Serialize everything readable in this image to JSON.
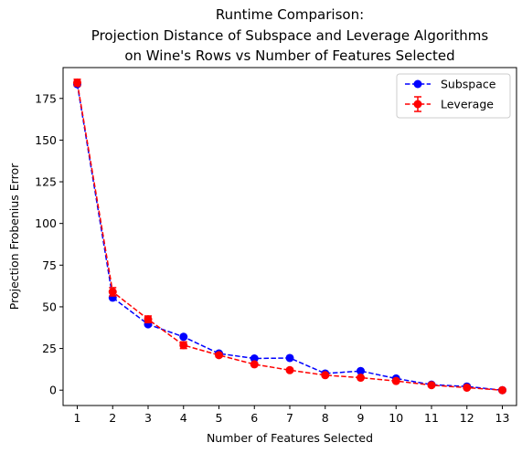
{
  "chart_data": {
    "type": "line",
    "title_lines": [
      "Runtime Comparison:",
      "Projection Distance of Subspace and Leverage Algorithms",
      "on Wine's Rows vs Number of Features Selected"
    ],
    "xlabel": "Number of Features Selected",
    "ylabel": "Projection Frobenius Error",
    "x": [
      1,
      2,
      3,
      4,
      5,
      6,
      7,
      8,
      9,
      10,
      11,
      12,
      13
    ],
    "xticks": [
      "1",
      "2",
      "3",
      "4",
      "5",
      "6",
      "7",
      "8",
      "9",
      "10",
      "11",
      "12",
      "13"
    ],
    "yticks": [
      0,
      25,
      50,
      75,
      100,
      125,
      150,
      175
    ],
    "ytick_labels": [
      "0",
      "25",
      "50",
      "75",
      "100",
      "125",
      "150",
      "175"
    ],
    "xlim": [
      0.6,
      13.4
    ],
    "ylim": [
      -9.2,
      193.5
    ],
    "grid": false,
    "legend_position": "top-right",
    "series": [
      {
        "name": "Subspace",
        "color": "#0000ff",
        "linestyle": "dashed",
        "marker": "circle",
        "errorbars": false,
        "values": [
          183.5,
          55.5,
          39.5,
          32.0,
          22.0,
          19.0,
          19.3,
          10.0,
          11.5,
          7.0,
          3.3,
          2.2,
          0.0
        ]
      },
      {
        "name": "Leverage",
        "color": "#ff0000",
        "linestyle": "dashed",
        "marker": "circle",
        "errorbars": true,
        "values": [
          184.5,
          59.0,
          42.5,
          27.0,
          21.0,
          15.5,
          12.0,
          9.0,
          7.5,
          5.5,
          3.0,
          1.5,
          0.0
        ],
        "errors": [
          2.0,
          2.5,
          2.0,
          2.0,
          1.0,
          0.8,
          0.7,
          0.6,
          0.5,
          0.4,
          0.3,
          0.2,
          0.1
        ]
      }
    ]
  }
}
